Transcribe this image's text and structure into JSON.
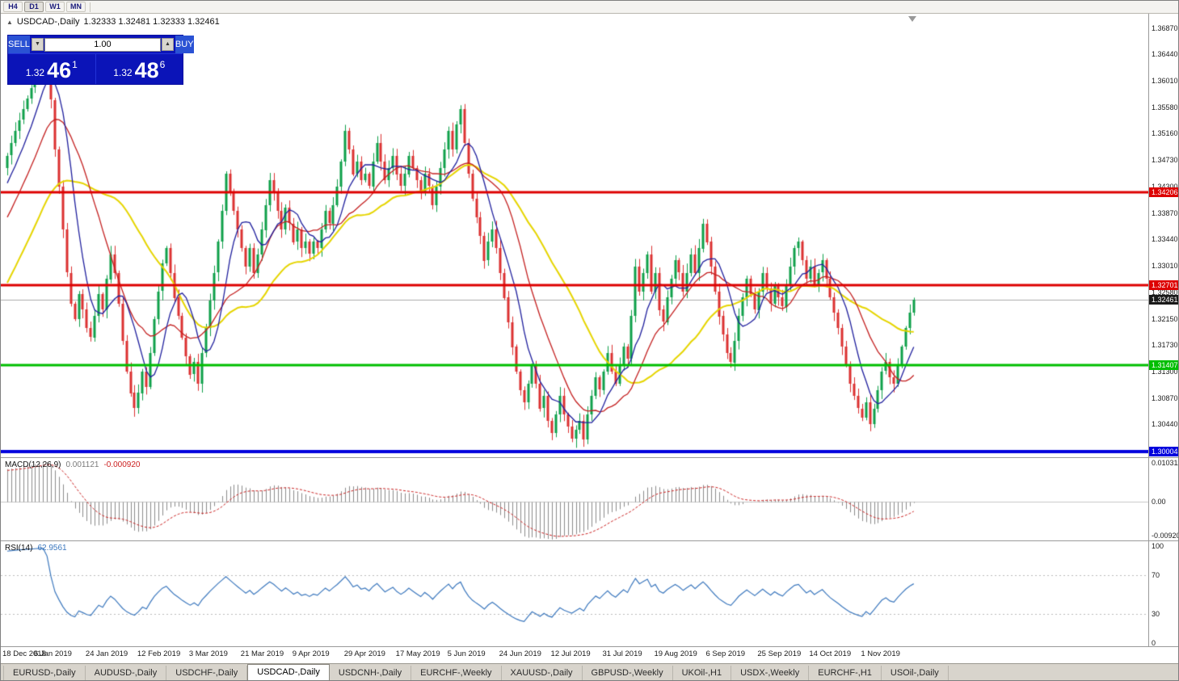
{
  "toolbar": {
    "timeframes": [
      "H4",
      "D1",
      "W1",
      "MN"
    ],
    "active_index": 1
  },
  "chart_header": {
    "symbol_title": "USDCAD-,Daily",
    "ohlc": "1.32333 1.32481 1.32333 1.32461"
  },
  "trade_panel": {
    "sell_label": "SELL",
    "buy_label": "BUY",
    "volume": "1.00",
    "sell_price_small": "1.32",
    "sell_price_big": "46",
    "sell_price_sup": "1",
    "buy_price_small": "1.32",
    "buy_price_big": "48",
    "buy_price_sup": "6"
  },
  "price_scale": {
    "ticks": [
      "1.36870",
      "1.36440",
      "1.36010",
      "1.35580",
      "1.35160",
      "1.34730",
      "1.34300",
      "1.33870",
      "1.33440",
      "1.33010",
      "1.32580",
      "1.32150",
      "1.31730",
      "1.31300",
      "1.30870",
      "1.30440"
    ]
  },
  "macd_panel": {
    "label": "MACD(12,26,9)",
    "value_main": "0.001121",
    "value_signal": "-0.000920",
    "scale_top": "0.010311",
    "scale_mid": "0.00",
    "scale_bottom": "-0.00920"
  },
  "rsi_panel": {
    "label": "RSI(14)",
    "value": "62.9561",
    "scale": [
      "100",
      "70",
      "30",
      "0"
    ]
  },
  "time_axis": {
    "labels": [
      "18 Dec 2018",
      "6 Jan 2019",
      "24 Jan 2019",
      "12 Feb 2019",
      "3 Mar 2019",
      "21 Mar 2019",
      "9 Apr 2019",
      "29 Apr 2019",
      "17 May 2019",
      "5 Jun 2019",
      "24 Jun 2019",
      "12 Jul 2019",
      "31 Jul 2019",
      "19 Aug 2019",
      "6 Sep 2019",
      "25 Sep 2019",
      "14 Oct 2019",
      "1 Nov 2019"
    ]
  },
  "tabs": {
    "active_index": 3,
    "items": [
      "EURUSD-,Daily",
      "AUDUSD-,Daily",
      "USDCHF-,Daily",
      "USDCAD-,Daily",
      "USDCNH-,Daily",
      "EURCHF-,Weekly",
      "XAUUSD-,Daily",
      "GBPUSD-,Weekly",
      "UKOil-,H1",
      "USDX-,Weekly",
      "EURCHF-,H1",
      "USOil-,Daily"
    ]
  },
  "icons": {
    "tab_scroll_left": "◄",
    "tab_scroll_right": "►",
    "title_triangle": "▲",
    "spin_down": "▼",
    "spin_up": "▲"
  },
  "chart_data": {
    "type": "candlestick",
    "symbol": "USDCAD",
    "timeframe": "Daily",
    "title": "USDCAD-,Daily",
    "ohlc_current": {
      "open": 1.32333,
      "high": 1.32481,
      "low": 1.32333,
      "close": 1.32461
    },
    "bid": 1.32461,
    "ask": 1.32486,
    "candle_count": 229,
    "label_stride": 13,
    "price_axis": {
      "top": 1.371,
      "bottom": 1.2991
    },
    "horizontal_levels": [
      {
        "price": 1.34206,
        "label": "1.34206",
        "color": "#DD0000",
        "width": 3
      },
      {
        "price": 1.32701,
        "label": "1.32701",
        "color": "#DD0000",
        "width": 3
      },
      {
        "price": 1.31407,
        "label": "1.31407",
        "color": "#00BE00",
        "width": 3
      },
      {
        "price": 1.30004,
        "label": "1.30004",
        "color": "#0000DD",
        "width": 4
      }
    ],
    "bid_line": {
      "price": 1.32461,
      "label": "1.32461",
      "line_color": "#ABABAB",
      "box_color": "#1A1A1A"
    },
    "candle_colors": {
      "up": "#0FA04A",
      "down": "#DC3232"
    },
    "moving_averages": [
      {
        "period": 8,
        "color": "#20209E",
        "width": 1.3
      },
      {
        "period": 17,
        "color": "#C42020",
        "width": 1.3
      },
      {
        "period": 34,
        "color": "#E6D500",
        "width": 2
      }
    ],
    "indicators": {
      "macd": {
        "fast": 12,
        "slow": 26,
        "signal": 9,
        "value": 0.001121,
        "signal_value": -0.00092,
        "histogram_color": "#8C8C8C",
        "signal_color": "#CC2222",
        "scale_top": 0.010311,
        "scale_bottom": -0.0092
      },
      "rsi": {
        "period": 14,
        "value": 62.9561,
        "color": "#3C78BE",
        "levels": [
          70,
          30
        ],
        "scale_max": 100,
        "scale_min": 0
      }
    },
    "close_waypoints": [
      [
        0,
        1.348
      ],
      [
        2,
        1.352
      ],
      [
        4,
        1.3555
      ],
      [
        6,
        1.359
      ],
      [
        8,
        1.3635
      ],
      [
        9,
        1.366
      ],
      [
        10,
        1.364
      ],
      [
        11,
        1.357
      ],
      [
        12,
        1.349
      ],
      [
        13,
        1.343
      ],
      [
        14,
        1.336
      ],
      [
        15,
        1.329
      ],
      [
        16,
        1.324
      ],
      [
        17,
        1.3215
      ],
      [
        18,
        1.3255
      ],
      [
        19,
        1.323
      ],
      [
        20,
        1.32
      ],
      [
        21,
        1.3185
      ],
      [
        22,
        1.322
      ],
      [
        23,
        1.3255
      ],
      [
        24,
        1.323
      ],
      [
        25,
        1.328
      ],
      [
        26,
        1.332
      ],
      [
        27,
        1.329
      ],
      [
        28,
        1.324
      ],
      [
        29,
        1.318
      ],
      [
        30,
        1.313
      ],
      [
        31,
        1.3095
      ],
      [
        32,
        1.307
      ],
      [
        33,
        1.3095
      ],
      [
        34,
        1.313
      ],
      [
        35,
        1.3105
      ],
      [
        36,
        1.316
      ],
      [
        37,
        1.3215
      ],
      [
        38,
        1.326
      ],
      [
        39,
        1.3305
      ],
      [
        40,
        1.333
      ],
      [
        41,
        1.329
      ],
      [
        42,
        1.325
      ],
      [
        43,
        1.322
      ],
      [
        44,
        1.3185
      ],
      [
        45,
        1.3155
      ],
      [
        46,
        1.3125
      ],
      [
        47,
        1.3145
      ],
      [
        48,
        1.311
      ],
      [
        49,
        1.316
      ],
      [
        50,
        1.32
      ],
      [
        52,
        1.329
      ],
      [
        54,
        1.339
      ],
      [
        55,
        1.345
      ],
      [
        56,
        1.342
      ],
      [
        57,
        1.339
      ],
      [
        58,
        1.336
      ],
      [
        59,
        1.333
      ],
      [
        60,
        1.33
      ],
      [
        61,
        1.333
      ],
      [
        62,
        1.329
      ],
      [
        63,
        1.332
      ],
      [
        64,
        1.336
      ],
      [
        65,
        1.34
      ],
      [
        66,
        1.344
      ],
      [
        67,
        1.342
      ],
      [
        68,
        1.339
      ],
      [
        69,
        1.336
      ],
      [
        70,
        1.3395
      ],
      [
        71,
        1.337
      ],
      [
        72,
        1.334
      ],
      [
        73,
        1.336
      ],
      [
        74,
        1.333
      ],
      [
        75,
        1.334
      ],
      [
        76,
        1.332
      ],
      [
        77,
        1.334
      ],
      [
        78,
        1.333
      ],
      [
        79,
        1.336
      ],
      [
        80,
        1.339
      ],
      [
        81,
        1.337
      ],
      [
        82,
        1.34
      ],
      [
        83,
        1.343
      ],
      [
        84,
        1.347
      ],
      [
        85,
        1.352
      ],
      [
        86,
        1.349
      ],
      [
        87,
        1.345
      ],
      [
        88,
        1.347
      ],
      [
        89,
        1.344
      ],
      [
        90,
        1.345
      ],
      [
        91,
        1.343
      ],
      [
        92,
        1.347
      ],
      [
        93,
        1.35
      ],
      [
        94,
        1.347
      ],
      [
        95,
        1.344
      ],
      [
        96,
        1.346
      ],
      [
        97,
        1.348
      ],
      [
        98,
        1.345
      ],
      [
        99,
        1.343
      ],
      [
        100,
        1.345
      ],
      [
        101,
        1.348
      ],
      [
        102,
        1.346
      ],
      [
        103,
        1.344
      ],
      [
        104,
        1.342
      ],
      [
        105,
        1.345
      ],
      [
        106,
        1.343
      ],
      [
        107,
        1.34
      ],
      [
        108,
        1.343
      ],
      [
        109,
        1.346
      ],
      [
        110,
        1.349
      ],
      [
        111,
        1.352
      ],
      [
        112,
        1.349
      ],
      [
        113,
        1.353
      ],
      [
        114,
        1.3555
      ],
      [
        115,
        1.35
      ],
      [
        116,
        1.345
      ],
      [
        117,
        1.341
      ],
      [
        118,
        1.338
      ],
      [
        119,
        1.335
      ],
      [
        120,
        1.331
      ],
      [
        121,
        1.334
      ],
      [
        122,
        1.336
      ],
      [
        123,
        1.333
      ],
      [
        124,
        1.329
      ],
      [
        125,
        1.325
      ],
      [
        126,
        1.321
      ],
      [
        127,
        1.317
      ],
      [
        128,
        1.313
      ],
      [
        129,
        1.31
      ],
      [
        130,
        1.308
      ],
      [
        131,
        1.311
      ],
      [
        132,
        1.314
      ],
      [
        133,
        1.311
      ],
      [
        134,
        1.307
      ],
      [
        135,
        1.309
      ],
      [
        136,
        1.305
      ],
      [
        137,
        1.303
      ],
      [
        138,
        1.306
      ],
      [
        139,
        1.309
      ],
      [
        140,
        1.306
      ],
      [
        141,
        1.304
      ],
      [
        142,
        1.302
      ],
      [
        143,
        1.3035
      ],
      [
        144,
        1.305
      ],
      [
        145,
        1.302
      ],
      [
        146,
        1.306
      ],
      [
        147,
        1.309
      ],
      [
        148,
        1.312
      ],
      [
        149,
        1.31
      ],
      [
        150,
        1.313
      ],
      [
        151,
        1.316
      ],
      [
        152,
        1.313
      ],
      [
        153,
        1.311
      ],
      [
        154,
        1.314
      ],
      [
        155,
        1.317
      ],
      [
        156,
        1.315
      ],
      [
        157,
        1.322
      ],
      [
        158,
        1.33
      ],
      [
        159,
        1.326
      ],
      [
        160,
        1.329
      ],
      [
        161,
        1.332
      ],
      [
        162,
        1.326
      ],
      [
        163,
        1.329
      ],
      [
        164,
        1.323
      ],
      [
        165,
        1.321
      ],
      [
        166,
        1.325
      ],
      [
        167,
        1.328
      ],
      [
        168,
        1.331
      ],
      [
        169,
        1.329
      ],
      [
        170,
        1.326
      ],
      [
        171,
        1.329
      ],
      [
        172,
        1.332
      ],
      [
        173,
        1.329
      ],
      [
        174,
        1.333
      ],
      [
        175,
        1.337
      ],
      [
        176,
        1.334
      ],
      [
        177,
        1.33
      ],
      [
        178,
        1.326
      ],
      [
        179,
        1.322
      ],
      [
        180,
        1.319
      ],
      [
        181,
        1.316
      ],
      [
        182,
        1.3145
      ],
      [
        183,
        1.318
      ],
      [
        184,
        1.322
      ],
      [
        185,
        1.325
      ],
      [
        186,
        1.328
      ],
      [
        187,
        1.3255
      ],
      [
        188,
        1.323
      ],
      [
        189,
        1.326
      ],
      [
        190,
        1.329
      ],
      [
        191,
        1.3265
      ],
      [
        192,
        1.324
      ],
      [
        193,
        1.327
      ],
      [
        194,
        1.325
      ],
      [
        195,
        1.3235
      ],
      [
        196,
        1.327
      ],
      [
        197,
        1.33
      ],
      [
        198,
        1.333
      ],
      [
        199,
        1.334
      ],
      [
        200,
        1.331
      ],
      [
        201,
        1.328
      ],
      [
        202,
        1.33
      ],
      [
        203,
        1.327
      ],
      [
        204,
        1.329
      ],
      [
        205,
        1.331
      ],
      [
        206,
        1.328
      ],
      [
        207,
        1.325
      ],
      [
        208,
        1.3225
      ],
      [
        209,
        1.32
      ],
      [
        210,
        1.317
      ],
      [
        211,
        1.314
      ],
      [
        212,
        1.311
      ],
      [
        213,
        1.309
      ],
      [
        214,
        1.307
      ],
      [
        215,
        1.3055
      ],
      [
        216,
        1.308
      ],
      [
        217,
        1.3045
      ],
      [
        218,
        1.307
      ],
      [
        219,
        1.31
      ],
      [
        220,
        1.313
      ],
      [
        221,
        1.3145
      ],
      [
        222,
        1.312
      ],
      [
        223,
        1.311
      ],
      [
        224,
        1.314
      ],
      [
        225,
        1.317
      ],
      [
        226,
        1.32
      ],
      [
        227,
        1.3225
      ],
      [
        228,
        1.3246
      ]
    ]
  }
}
